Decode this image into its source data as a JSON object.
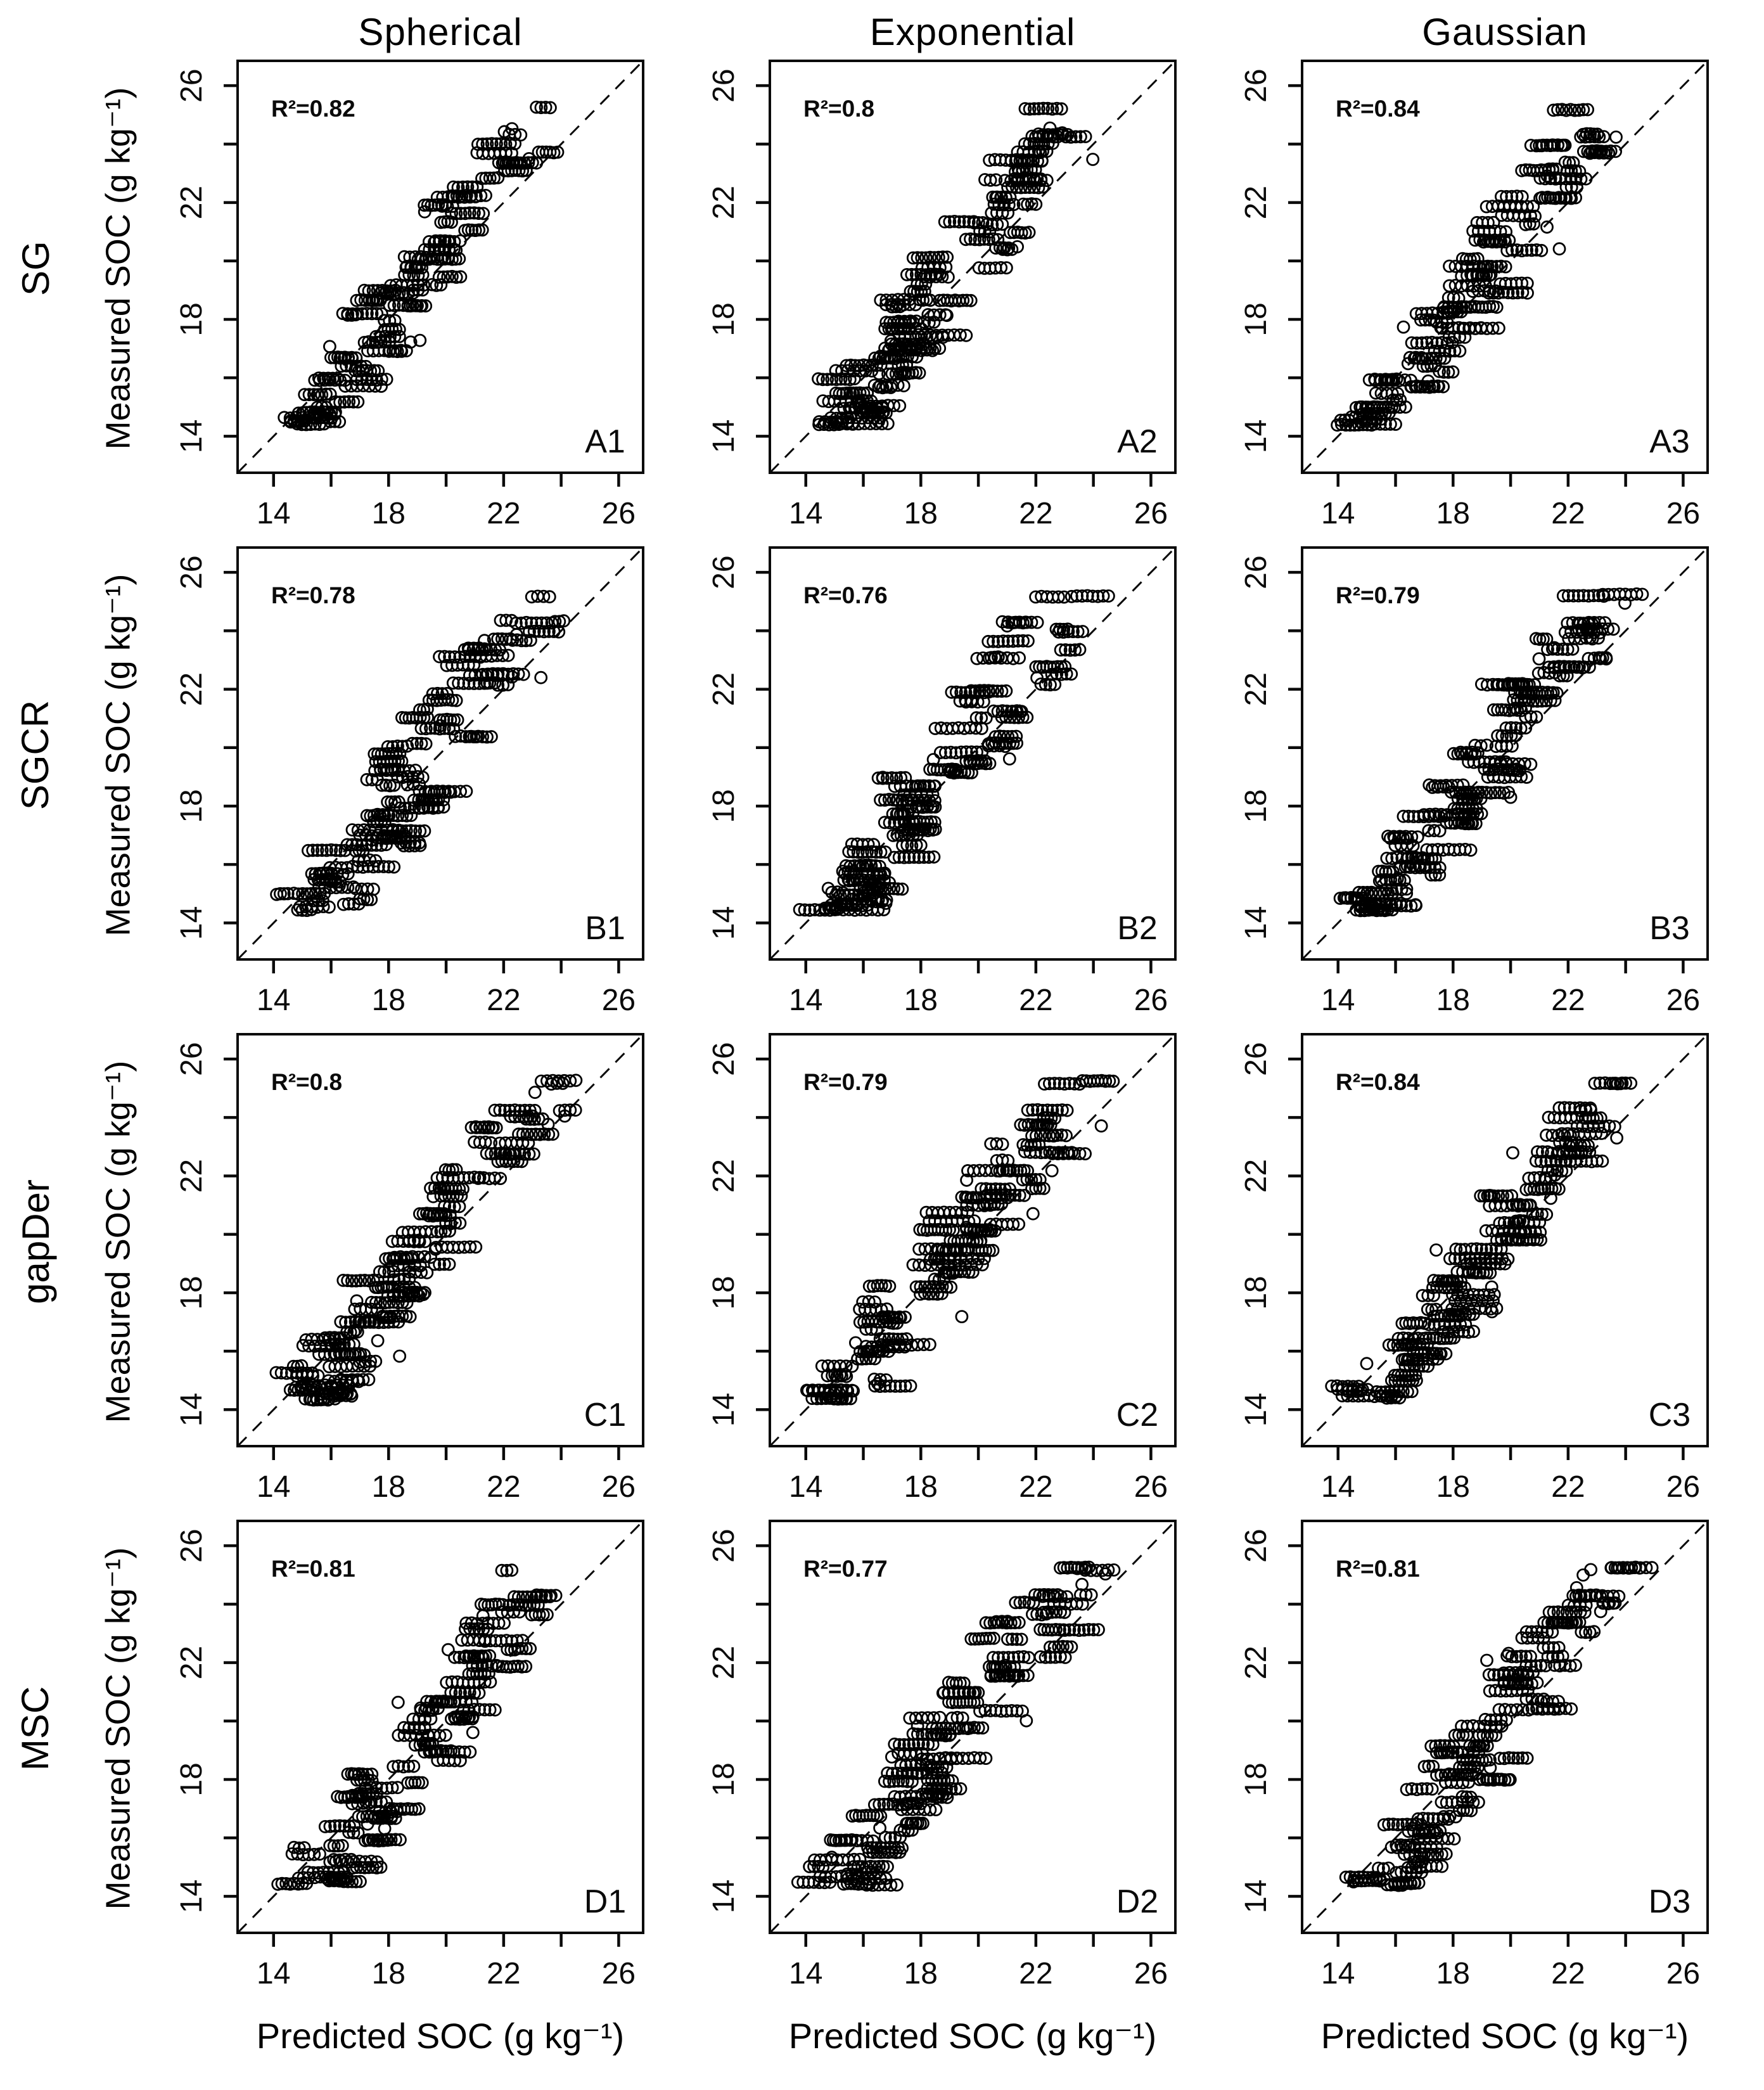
{
  "figure": {
    "background": "#ffffff",
    "ink_color": "#0a0a0a",
    "description": "4x3 grid of measured vs predicted SOC scatter plots with 1:1 dashed line"
  },
  "chart_data": {
    "type": "scatter",
    "cols": [
      "Spherical",
      "Exponential",
      "Gaussian"
    ],
    "rows": [
      "SG",
      "SGCR",
      "gapDer",
      "MSC"
    ],
    "xlabel": "Predicted SOC (g kg⁻¹)",
    "ylabel": "Measured  SOC (g kg⁻¹)",
    "axis": {
      "range": [
        12.75,
        26.85
      ],
      "ticks": [
        14,
        16,
        18,
        20,
        22,
        24,
        26
      ],
      "labeled_ticks": [
        14,
        18,
        22,
        26
      ],
      "tick_labels": [
        "14",
        "18",
        "22",
        "26"
      ]
    },
    "identity_line": {
      "type": "1:1",
      "style": "dashed",
      "color": "#0a0a0a"
    },
    "marker": {
      "shape": "open-circle",
      "color": "#000000",
      "radius_px": 9
    },
    "panels": [
      {
        "id": "A1",
        "row": "SG",
        "col": "Spherical",
        "r2": 0.82,
        "r2_label": "R²=0.82",
        "seed": 101
      },
      {
        "id": "A2",
        "row": "SG",
        "col": "Exponential",
        "r2": 0.8,
        "r2_label": "R²=0.8",
        "seed": 102
      },
      {
        "id": "A3",
        "row": "SG",
        "col": "Gaussian",
        "r2": 0.84,
        "r2_label": "R²=0.84",
        "seed": 103
      },
      {
        "id": "B1",
        "row": "SGCR",
        "col": "Spherical",
        "r2": 0.78,
        "r2_label": "R²=0.78",
        "seed": 104
      },
      {
        "id": "B2",
        "row": "SGCR",
        "col": "Exponential",
        "r2": 0.76,
        "r2_label": "R²=0.76",
        "seed": 105
      },
      {
        "id": "B3",
        "row": "SGCR",
        "col": "Gaussian",
        "r2": 0.79,
        "r2_label": "R²=0.79",
        "seed": 106
      },
      {
        "id": "C1",
        "row": "gapDer",
        "col": "Spherical",
        "r2": 0.8,
        "r2_label": "R²=0.8",
        "seed": 107
      },
      {
        "id": "C2",
        "row": "gapDer",
        "col": "Exponential",
        "r2": 0.79,
        "r2_label": "R²=0.79",
        "seed": 108
      },
      {
        "id": "C3",
        "row": "gapDer",
        "col": "Gaussian",
        "r2": 0.84,
        "r2_label": "R²=0.84",
        "seed": 109
      },
      {
        "id": "D1",
        "row": "MSC",
        "col": "Spherical",
        "r2": 0.81,
        "r2_label": "R²=0.81",
        "seed": 110
      },
      {
        "id": "D2",
        "row": "MSC",
        "col": "Exponential",
        "r2": 0.77,
        "r2_label": "R²=0.77",
        "seed": 111
      },
      {
        "id": "D3",
        "row": "MSC",
        "col": "Gaussian",
        "r2": 0.81,
        "r2_label": "R²=0.81",
        "seed": 112
      }
    ],
    "scatter_model": {
      "note": "Each panel shows ~400 overlapping open circles in horizontal chains; values estimated from axes.",
      "y_levels": [
        14.4,
        14.5,
        14.65,
        14.8,
        15.0,
        15.2,
        15.45,
        15.7,
        15.95,
        16.2,
        16.45,
        16.7,
        16.95,
        17.2,
        17.45,
        17.7,
        17.95,
        18.2,
        18.45,
        18.7,
        18.95,
        19.2,
        19.5,
        19.8,
        20.1,
        20.4,
        20.7,
        21.0,
        21.3,
        21.6,
        21.9,
        22.2,
        22.5,
        22.8,
        23.1,
        23.4,
        23.7,
        24.0,
        24.3,
        25.2
      ],
      "trend_slope": 0.74,
      "trend_intercept": 4.8,
      "base_noise": 0.5,
      "r2_noise": 2.0,
      "chain_min": 3,
      "chain_span": 7,
      "dx_min": 0.12,
      "dx_span": 0.09,
      "singles": 9,
      "x_clamp": [
        13.55,
        24.95
      ],
      "y_clamp": [
        14.3,
        25.3
      ]
    }
  }
}
